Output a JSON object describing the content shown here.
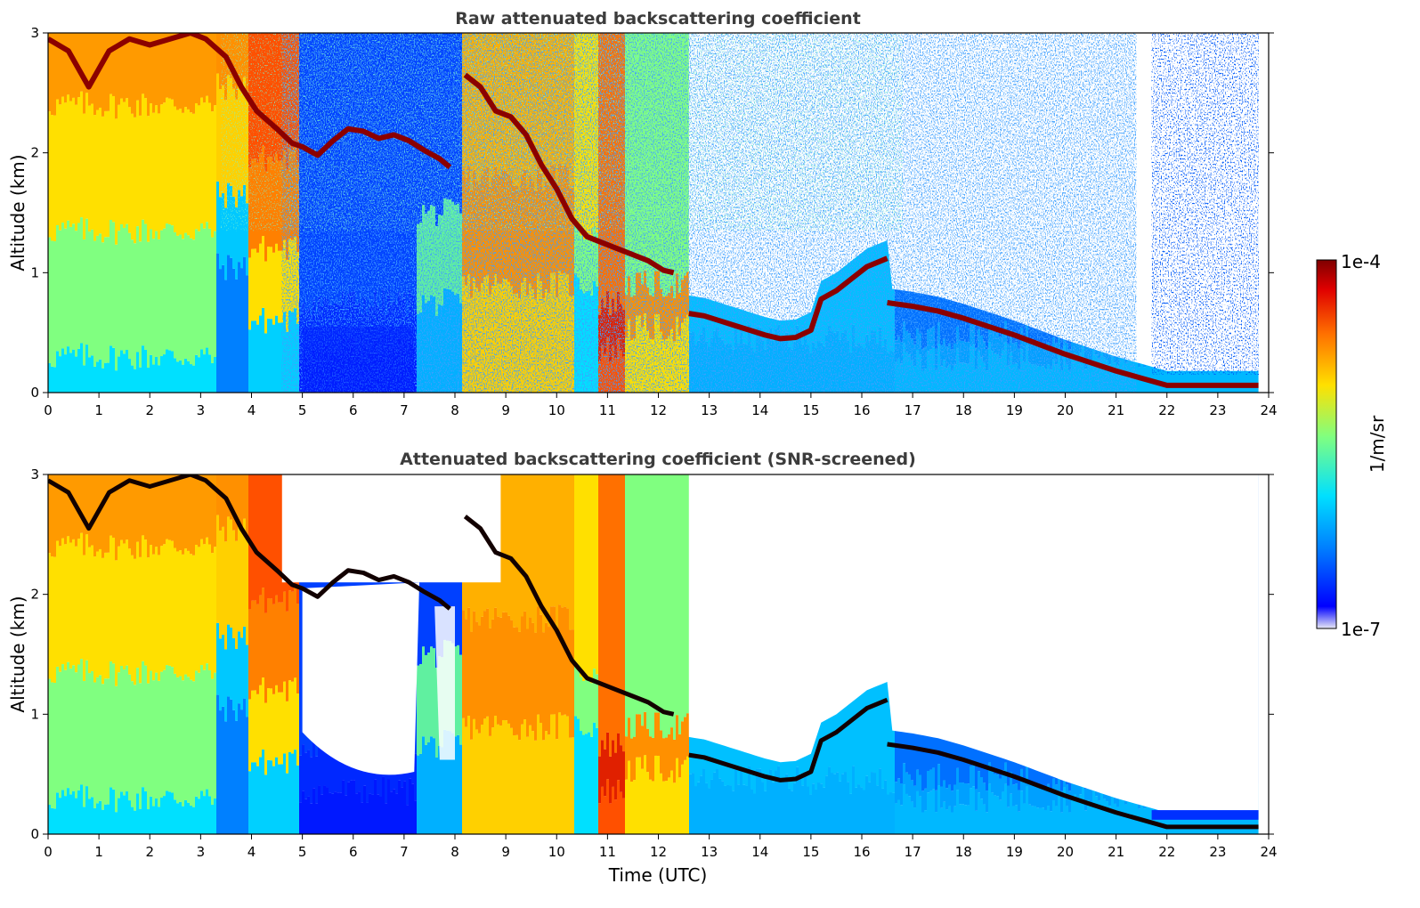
{
  "chart_data": [
    {
      "type": "heatmap",
      "title": "Raw attenuated backscattering coefficient",
      "xlabel": "",
      "ylabel": "Altitude (km)",
      "xlim": [
        0,
        24
      ],
      "ylim": [
        0,
        3
      ],
      "x_ticks": [
        "0",
        "1",
        "2",
        "3",
        "4",
        "5",
        "6",
        "7",
        "8",
        "9",
        "10",
        "11",
        "12",
        "13",
        "14",
        "15",
        "16",
        "17",
        "18",
        "19",
        "20",
        "21",
        "22",
        "23",
        "24"
      ],
      "y_ticks": [
        "0",
        "1",
        "2",
        "3"
      ],
      "data_end_hour": 23.8,
      "cloud_layer": {
        "x": [
          0.0,
          0.4,
          0.8,
          1.2,
          1.6,
          2.0,
          2.4,
          2.8,
          3.1,
          3.5,
          3.8,
          4.1,
          4.5,
          4.8,
          5.0,
          5.3,
          5.6,
          5.9,
          6.2,
          6.5,
          6.8,
          7.1,
          7.4,
          7.7,
          7.9,
          8.2,
          8.5,
          8.8,
          9.1,
          9.4,
          9.7,
          10.0,
          10.3,
          10.6,
          10.9,
          11.2,
          11.5,
          11.8,
          12.1,
          12.3,
          12.6,
          12.9,
          13.2,
          13.5,
          13.8,
          14.1,
          14.4,
          14.7,
          15.0,
          15.2,
          15.5,
          15.8,
          16.1,
          16.5
        ],
        "y": [
          2.95,
          2.85,
          2.55,
          2.85,
          2.95,
          2.9,
          2.95,
          3.0,
          2.95,
          2.8,
          2.55,
          2.35,
          2.2,
          2.08,
          2.05,
          1.98,
          2.1,
          2.2,
          2.18,
          2.12,
          2.15,
          2.1,
          2.02,
          1.95,
          1.88,
          2.65,
          2.55,
          2.35,
          2.3,
          2.15,
          1.9,
          1.7,
          1.45,
          1.3,
          1.25,
          1.2,
          1.15,
          1.1,
          1.02,
          1.0,
          0.66,
          0.64,
          0.6,
          0.56,
          0.52,
          0.48,
          0.45,
          0.46,
          0.52,
          0.78,
          0.85,
          0.95,
          1.05,
          1.12
        ]
      },
      "boundary_layer_top": {
        "x": [
          16.5,
          17.0,
          17.5,
          18.0,
          18.5,
          19.0,
          19.5,
          20.0,
          20.5,
          21.0,
          21.5,
          22.0,
          22.5,
          23.0,
          23.8
        ],
        "y": [
          0.75,
          0.72,
          0.68,
          0.62,
          0.55,
          0.48,
          0.4,
          0.32,
          0.25,
          0.18,
          0.12,
          0.06,
          0.06,
          0.06,
          0.06
        ]
      }
    },
    {
      "type": "heatmap",
      "title": "Attenuated backscattering coefficient (SNR-screened)",
      "xlabel": "Time (UTC)",
      "ylabel": "Altitude (km)",
      "xlim": [
        0,
        24
      ],
      "ylim": [
        0,
        3
      ],
      "x_ticks": [
        "0",
        "1",
        "2",
        "3",
        "4",
        "5",
        "6",
        "7",
        "8",
        "9",
        "10",
        "11",
        "12",
        "13",
        "14",
        "15",
        "16",
        "17",
        "18",
        "19",
        "20",
        "21",
        "22",
        "23",
        "24"
      ],
      "y_ticks": [
        "0",
        "1",
        "2",
        "3"
      ],
      "data_end_hour": 23.8
    }
  ],
  "colorbar": {
    "label": "1/m/sr",
    "max_label": "1e-4",
    "min_label": "1e-7",
    "colormap": "jet",
    "colors": [
      "#e8e8f4",
      "#0000ff",
      "#0080ff",
      "#00e0ff",
      "#80ff80",
      "#ffe000",
      "#ff7000",
      "#e00000",
      "#7f0000"
    ]
  }
}
